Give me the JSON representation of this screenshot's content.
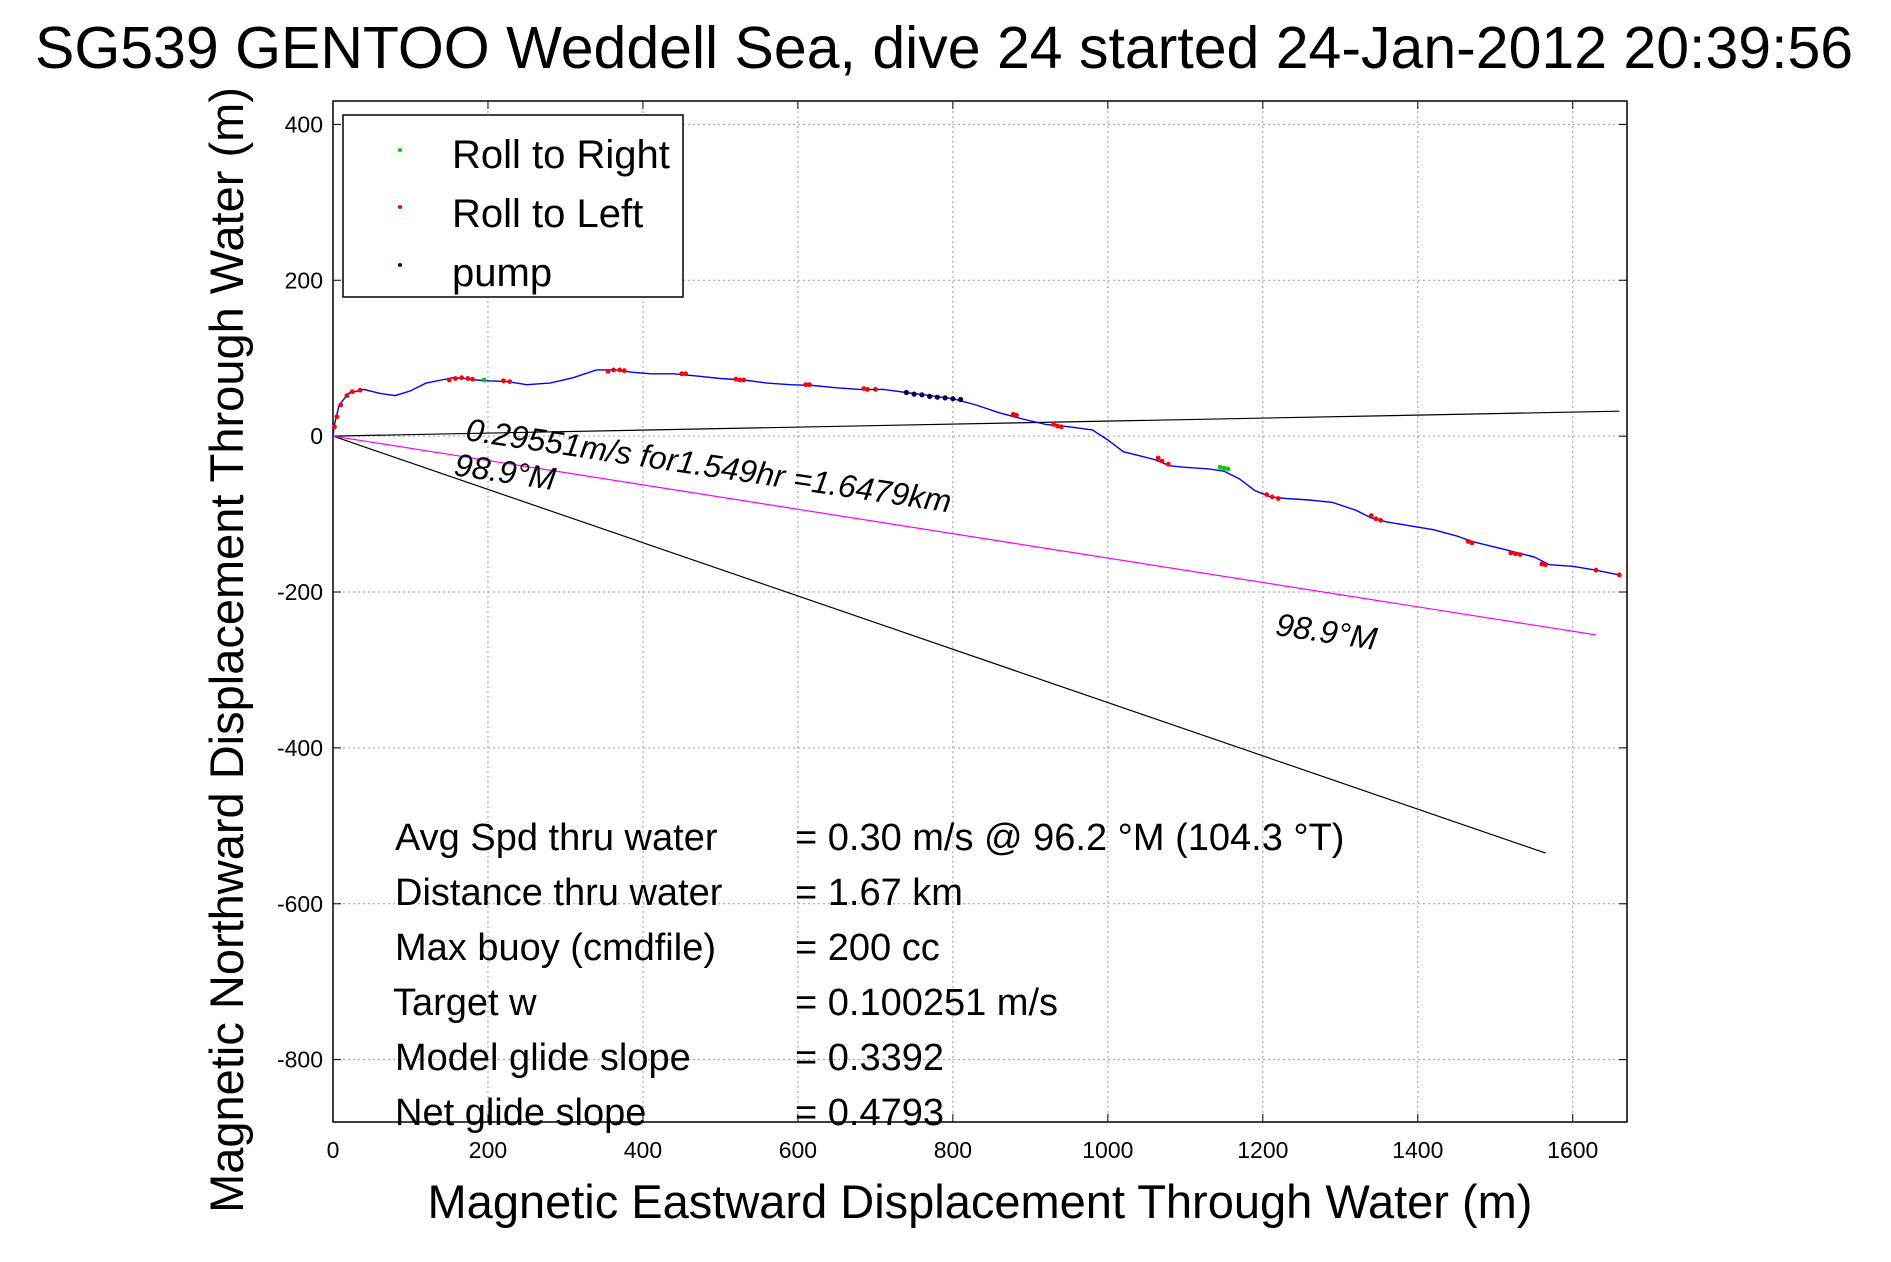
{
  "chart_data": {
    "type": "line",
    "title": "SG539 GENTOO Weddell Sea, dive 24 started 24-Jan-2012 20:39:56",
    "xlabel": "Magnetic Eastward Displacement Through Water (m)",
    "ylabel": "Magnetic Northward Displacement Through Water (m)",
    "xlim": [
      0,
      1670
    ],
    "ylim": [
      -880,
      430
    ],
    "xticks": [
      0,
      200,
      400,
      600,
      800,
      1000,
      1200,
      1400,
      1600
    ],
    "yticks": [
      400,
      200,
      0,
      -200,
      -400,
      -600,
      -800
    ],
    "grid": true,
    "legend_position": "top-left",
    "legend": [
      {
        "label": "Roll to Right",
        "color": "#00cc00"
      },
      {
        "label": "Roll to Left",
        "color": "#ff0000"
      },
      {
        "label": "pump",
        "color": "#000044"
      }
    ],
    "series": [
      {
        "style": "track",
        "color": "#0000ff",
        "x": [
          0,
          2,
          8,
          20,
          40,
          60,
          80,
          100,
          120,
          140,
          155,
          170,
          185,
          200,
          225,
          250,
          280,
          310,
          340,
          365,
          385,
          410,
          440,
          470,
          500,
          530,
          560,
          590,
          620,
          650,
          680,
          710,
          740,
          770,
          800,
          830,
          860,
          890,
          920,
          950,
          980,
          1000,
          1020,
          1040,
          1060,
          1080,
          1100,
          1130,
          1150,
          1170,
          1190,
          1210,
          1230,
          1260,
          1290,
          1320,
          1340,
          1360,
          1390,
          1420,
          1450,
          1470,
          1490,
          1510,
          1530,
          1550,
          1570,
          1600,
          1630,
          1660
        ],
        "y": [
          0,
          15,
          40,
          55,
          60,
          55,
          52,
          58,
          68,
          72,
          75,
          74,
          72,
          71,
          70,
          66,
          68,
          75,
          85,
          85,
          82,
          80,
          80,
          77,
          74,
          72,
          68,
          66,
          65,
          62,
          60,
          60,
          56,
          52,
          48,
          40,
          30,
          22,
          15,
          12,
          8,
          -5,
          -20,
          -25,
          -30,
          -38,
          -40,
          -42,
          -45,
          -55,
          -70,
          -78,
          -80,
          -82,
          -85,
          -95,
          -105,
          -110,
          -115,
          -120,
          -128,
          -135,
          -140,
          -145,
          -150,
          -155,
          -165,
          -167,
          -172,
          -178
        ]
      },
      {
        "style": "roll-left",
        "color": "#ff0000",
        "x": [
          2,
          5,
          10,
          18,
          25,
          35,
          150,
          158,
          166,
          174,
          180,
          220,
          228,
          355,
          362,
          370,
          376,
          450,
          455,
          520,
          525,
          530,
          610,
          615,
          685,
          690,
          700,
          878,
          882,
          930,
          935,
          940,
          1065,
          1070,
          1078,
          1205,
          1212,
          1220,
          1340,
          1346,
          1352,
          1465,
          1470,
          1520,
          1526,
          1532,
          1560,
          1565,
          1630,
          1660
        ],
        "y": [
          12,
          25,
          40,
          52,
          57,
          59,
          72,
          74,
          75,
          74,
          73,
          71,
          70,
          83,
          85,
          85,
          84,
          80,
          80,
          73,
          72,
          72,
          66,
          66,
          61,
          60,
          60,
          28,
          27,
          15,
          13,
          12,
          -28,
          -32,
          -36,
          -75,
          -78,
          -80,
          -102,
          -106,
          -108,
          -135,
          -137,
          -150,
          -151,
          -152,
          -164,
          -165,
          -172,
          -178
        ]
      },
      {
        "style": "roll-right",
        "color": "#00cc00",
        "x": [
          195,
          1145,
          1150,
          1155
        ],
        "y": [
          72,
          -40,
          -41,
          -42
        ]
      },
      {
        "style": "pump",
        "color": "#000044",
        "x": [
          740,
          750,
          760,
          770,
          780,
          790,
          800,
          810
        ],
        "y": [
          56,
          54,
          53,
          51,
          50,
          49,
          48,
          47
        ]
      },
      {
        "style": "reference-line",
        "color": "#000000",
        "x": [
          0,
          1660
        ],
        "y": [
          0,
          32
        ]
      },
      {
        "style": "reference-line",
        "color": "#000000",
        "x": [
          0,
          1565
        ],
        "y": [
          0,
          -535
        ]
      },
      {
        "style": "reference-line",
        "color": "#ff00ff",
        "x": [
          0,
          1630
        ],
        "y": [
          0,
          -255
        ]
      }
    ],
    "annotations": [
      {
        "text": "0.29551m/s for1.549hr =1.6479km",
        "x": 170,
        "y": -5,
        "rotation_deg": 8.5
      },
      {
        "text": "98.9°M",
        "x": 155,
        "y": -50,
        "rotation_deg": 8.5
      },
      {
        "text": "98.9°M",
        "x": 1215,
        "y": -255,
        "rotation_deg": 8.5
      }
    ],
    "stats": [
      {
        "label": "Avg Spd thru water",
        "value": "=  0.30 m/s @  96.2 °M (104.3 °T)"
      },
      {
        "label": "Distance thru water",
        "value": "=  1.67 km"
      },
      {
        "label": "Max buoy (cmdfile)",
        "value": "= 200 cc"
      },
      {
        "label": "Target w",
        "value": "= 0.100251 m/s"
      },
      {
        "label": "Model glide slope",
        "value": "= 0.3392"
      },
      {
        "label": "Net glide slope",
        "value": "= 0.4793"
      }
    ]
  }
}
